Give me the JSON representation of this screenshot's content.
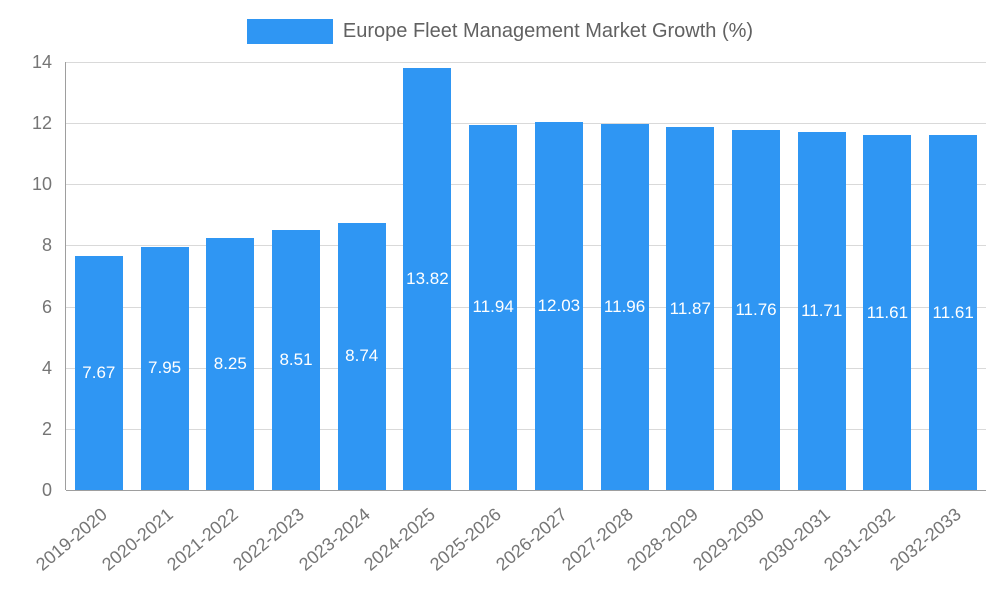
{
  "chart_data": {
    "type": "bar",
    "title": "Europe Fleet Management Market Growth (%)",
    "categories": [
      "2019-2020",
      "2020-2021",
      "2021-2022",
      "2022-2023",
      "2023-2024",
      "2024-2025",
      "2025-2026",
      "2026-2027",
      "2027-2028",
      "2028-2029",
      "2029-2030",
      "2030-2031",
      "2031-2032",
      "2032-2033"
    ],
    "values": [
      7.67,
      7.95,
      8.25,
      8.51,
      8.74,
      13.82,
      11.94,
      12.03,
      11.96,
      11.87,
      11.76,
      11.71,
      11.61,
      11.61
    ],
    "xlabel": "",
    "ylabel": "",
    "ylim": [
      0,
      14
    ],
    "yticks": [
      0,
      2,
      4,
      6,
      8,
      10,
      12,
      14
    ],
    "grid": true,
    "legend_position": "top",
    "bar_color": "#2f96f3",
    "data_label_color": "#ffffff",
    "axis_text_color": "#757575",
    "gridline_color": "#d9d9d9",
    "axis_line_color": "#9e9e9e",
    "title_color": "#616161"
  }
}
